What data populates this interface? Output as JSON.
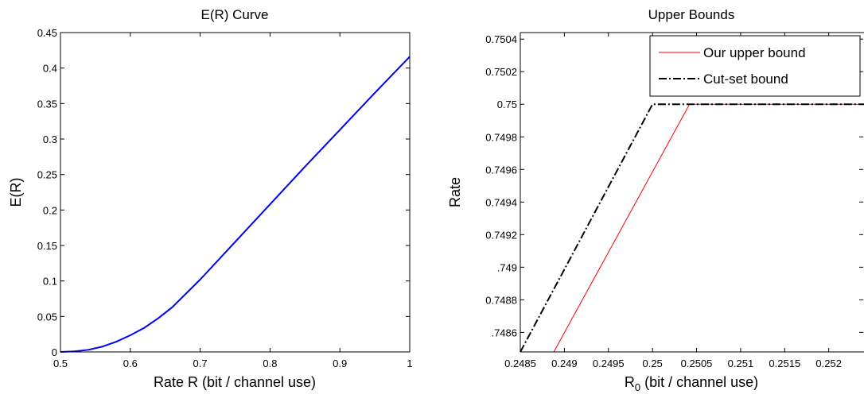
{
  "chart_data": [
    {
      "type": "line",
      "title": "E(R) Curve",
      "xlabel": "Rate R (bit / channel use)",
      "ylabel": "E(R)",
      "xlim": [
        0.5,
        1.0
      ],
      "ylim": [
        0,
        0.45
      ],
      "xticks": [
        "0.5",
        "0.6",
        "0.7",
        "0.8",
        "0.9",
        "1"
      ],
      "yticks": [
        "0",
        "0.05",
        "0.1",
        "0.15",
        "0.2",
        "0.25",
        "0.3",
        "0.35",
        "0.4",
        "0.45"
      ],
      "grid": false,
      "series": [
        {
          "color": "#0000ff",
          "x": [
            0.5,
            0.52,
            0.54,
            0.56,
            0.58,
            0.6,
            0.62,
            0.64,
            0.66,
            0.7,
            0.75,
            0.8,
            0.85,
            0.9,
            0.95,
            1.0
          ],
          "y": [
            0.0,
            0.0008,
            0.003,
            0.0075,
            0.0145,
            0.0235,
            0.034,
            0.0475,
            0.063,
            0.102,
            0.155,
            0.208,
            0.261,
            0.313,
            0.365,
            0.416
          ]
        }
      ]
    },
    {
      "type": "line",
      "title": "Upper Bounds",
      "xlabel": "R",
      "xlabel_sub": "0",
      "xlabel_rest": " (bit / channel use)",
      "ylabel": "Rate",
      "xlim": [
        0.2485,
        0.2524
      ],
      "ylim": [
        0.74848,
        0.75044
      ],
      "xtick_values": [
        0.2485,
        0.249,
        0.2495,
        0.25,
        0.2505,
        0.251,
        0.2515,
        0.252
      ],
      "xticks": [
        "0.2485",
        "0.249",
        "0.2495",
        "0.25",
        "0.2505",
        "0.251",
        "0.2515",
        "0.252"
      ],
      "ytick_values": [
        0.7486,
        0.7488,
        0.749,
        0.7492,
        0.7494,
        0.7496,
        0.7498,
        0.75,
        0.7502,
        0.7504
      ],
      "yticks": [
        ".7486",
        "0.7488",
        ".749",
        "0.7492",
        "0.7494",
        "0.7496",
        "0.7498",
        "0.75",
        "0.7502",
        "0.7504"
      ],
      "grid": false,
      "legend_position": "top-right",
      "series": [
        {
          "name": "Our upper bound",
          "color": "#ff0000",
          "style": "solid",
          "x": [
            0.24888,
            0.25042,
            0.2524
          ],
          "y": [
            0.74848,
            0.75,
            0.75
          ]
        },
        {
          "name": "Cut-set bound",
          "color": "#000000",
          "style": "dashdot",
          "x": [
            0.2485,
            0.25,
            0.2524
          ],
          "y": [
            0.74848,
            0.75,
            0.75
          ]
        }
      ]
    }
  ]
}
